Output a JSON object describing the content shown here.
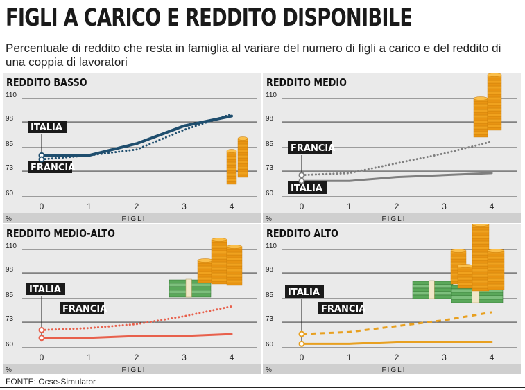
{
  "title": "FIGLI A CARICO E REDDITO DISPONIBILE",
  "subtitle": "Percentuale di reddito che resta in famiglia al variare del numero di figli a carico e del reddito di una coppia di lavoratori",
  "source": "FONTE: Ocse-Simulator",
  "chart_data": [
    {
      "type": "line",
      "title": "REDDITO BASSO",
      "xlabel": "FIGLI",
      "ylabel": "%",
      "x": [
        0,
        1,
        2,
        3,
        4
      ],
      "yticks": [
        60,
        73,
        85,
        98,
        110
      ],
      "ylim": [
        60,
        110
      ],
      "series": [
        {
          "name": "ITALIA",
          "values": [
            81,
            81,
            87,
            96,
            101
          ],
          "color": "#1f4e6e",
          "style": "solid"
        },
        {
          "name": "FRANCIA",
          "values": [
            79,
            81,
            84,
            94,
            102
          ],
          "color": "#1f4e6e",
          "style": "dotted"
        }
      ]
    },
    {
      "type": "line",
      "title": "REDDITO MEDIO",
      "xlabel": "FIGLI",
      "ylabel": "%",
      "x": [
        0,
        1,
        2,
        3,
        4
      ],
      "yticks": [
        60,
        73,
        85,
        98,
        110
      ],
      "ylim": [
        60,
        110
      ],
      "series": [
        {
          "name": "ITALIA",
          "values": [
            68,
            68,
            70,
            71,
            72
          ],
          "color": "#7f7f7f",
          "style": "solid"
        },
        {
          "name": "FRANCIA",
          "values": [
            71,
            72,
            77,
            82,
            88
          ],
          "color": "#7f7f7f",
          "style": "dotted"
        }
      ]
    },
    {
      "type": "line",
      "title": "REDDITO MEDIO-ALTO",
      "xlabel": "FIGLI",
      "ylabel": "%",
      "x": [
        0,
        1,
        2,
        3,
        4
      ],
      "yticks": [
        60,
        73,
        85,
        98,
        110
      ],
      "ylim": [
        60,
        110
      ],
      "series": [
        {
          "name": "ITALIA",
          "values": [
            65,
            65,
            66,
            66,
            67
          ],
          "color": "#e8604c",
          "style": "solid"
        },
        {
          "name": "FRANCIA",
          "values": [
            69,
            70,
            72,
            76,
            81
          ],
          "color": "#e8604c",
          "style": "dotted"
        }
      ]
    },
    {
      "type": "line",
      "title": "REDDITO ALTO",
      "xlabel": "FIGLI",
      "ylabel": "%",
      "x": [
        0,
        1,
        2,
        3,
        4
      ],
      "yticks": [
        60,
        73,
        85,
        98,
        110
      ],
      "ylim": [
        60,
        110
      ],
      "series": [
        {
          "name": "ITALIA",
          "values": [
            62,
            62,
            63,
            63,
            63
          ],
          "color": "#e8a020",
          "style": "solid"
        },
        {
          "name": "FRANCIA",
          "values": [
            67,
            68,
            71,
            74,
            78
          ],
          "color": "#e8a020",
          "style": "dashed"
        }
      ]
    }
  ],
  "panel_labels": [
    {
      "italia": "ITALIA",
      "francia": "FRANCIA"
    },
    {
      "italia": "ITALIA",
      "francia": "FRANCIA"
    },
    {
      "italia": "ITALIA",
      "francia": "FRANCIA"
    },
    {
      "italia": "ITALIA",
      "francia": "FRANCIA"
    }
  ],
  "decorations": [
    "coin-stack-icon",
    "banknote-bundle-icon"
  ]
}
